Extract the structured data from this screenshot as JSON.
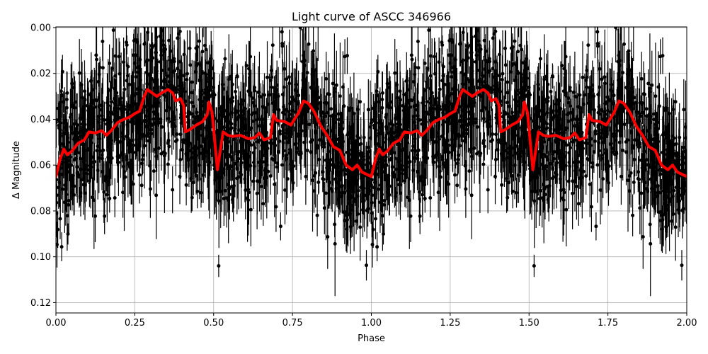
{
  "chart_data": {
    "type": "scatter",
    "title": "Light curve of ASCC 346966",
    "xlabel": "Phase",
    "ylabel": "Δ Magnitude",
    "xlim": [
      0.0,
      2.0
    ],
    "ylim": [
      0.1245,
      -0.0003
    ],
    "y_inverted": true,
    "grid": true,
    "legend": null,
    "x_ticks": [
      0.0,
      0.25,
      0.5,
      0.75,
      1.0,
      1.25,
      1.5,
      1.75,
      2.0
    ],
    "x_tick_labels": [
      "0.00",
      "0.25",
      "0.50",
      "0.75",
      "1.00",
      "1.25",
      "1.50",
      "1.75",
      "2.00"
    ],
    "y_ticks": [
      0.0,
      0.02,
      0.04,
      0.06,
      0.08,
      0.1,
      0.12
    ],
    "y_tick_labels": [
      "0.00",
      "0.02",
      "0.04",
      "0.06",
      "0.08",
      "0.10",
      "0.12"
    ],
    "series": [
      {
        "name": "observations",
        "type": "errorbar-scatter",
        "color": "#000000",
        "description": "Dense cloud of individual photometric measurements with vertical error bars, phase-folded and repeated over two cycles; scatter roughly ±0.03 mag around the binned curve, reaching 0.00–0.125 extremes"
      },
      {
        "name": "binned light curve",
        "type": "line",
        "color": "#ff0000",
        "linewidth": 4,
        "period_repeat": 2,
        "phase": [
          0.0,
          0.013,
          0.025,
          0.036,
          0.05,
          0.07,
          0.09,
          0.105,
          0.125,
          0.145,
          0.16,
          0.175,
          0.195,
          0.215,
          0.235,
          0.25,
          0.265,
          0.28,
          0.29,
          0.305,
          0.32,
          0.335,
          0.355,
          0.37,
          0.38,
          0.395,
          0.405,
          0.41,
          0.425,
          0.445,
          0.465,
          0.48,
          0.485,
          0.495,
          0.512,
          0.53,
          0.545,
          0.56,
          0.585,
          0.61,
          0.63,
          0.645,
          0.66,
          0.68,
          0.69,
          0.7,
          0.725,
          0.745,
          0.77,
          0.785,
          0.8,
          0.82,
          0.84,
          0.86,
          0.88,
          0.9,
          0.92,
          0.94,
          0.955,
          0.97,
          0.985,
          1.0
        ],
        "dmag": [
          0.065,
          0.0575,
          0.053,
          0.0555,
          0.054,
          0.0505,
          0.049,
          0.0455,
          0.046,
          0.045,
          0.047,
          0.045,
          0.0415,
          0.04,
          0.039,
          0.0375,
          0.0365,
          0.03,
          0.027,
          0.0285,
          0.03,
          0.0285,
          0.027,
          0.0285,
          0.032,
          0.031,
          0.034,
          0.0455,
          0.0445,
          0.0425,
          0.041,
          0.038,
          0.0325,
          0.037,
          0.062,
          0.0455,
          0.047,
          0.0475,
          0.047,
          0.0485,
          0.048,
          0.046,
          0.049,
          0.048,
          0.038,
          0.0405,
          0.041,
          0.0425,
          0.037,
          0.032,
          0.033,
          0.037,
          0.043,
          0.047,
          0.052,
          0.0535,
          0.06,
          0.062,
          0.06,
          0.063,
          0.064,
          0.065
        ]
      }
    ]
  },
  "colors": {
    "background": "#ffffff",
    "grid": "#b0b0b0",
    "axes": "#000000",
    "points": "#000000",
    "curve": "#ff0000"
  }
}
